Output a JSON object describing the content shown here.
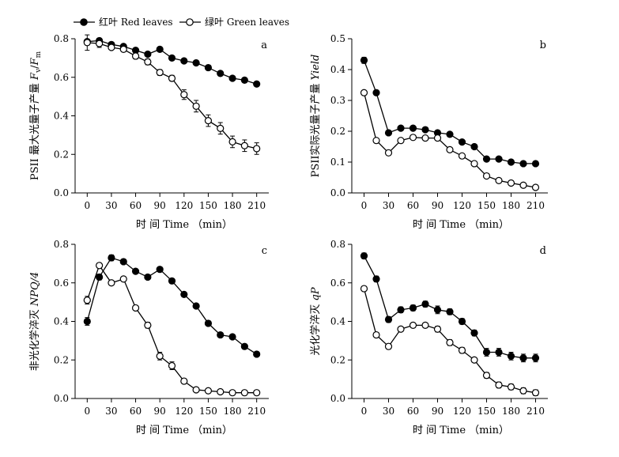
{
  "legend": [
    {
      "series": "red",
      "label": "红叶  Red leaves",
      "marker": "filled-circle",
      "color": "#000000"
    },
    {
      "series": "green",
      "label": "绿叶  Green leaves",
      "marker": "open-circle",
      "color": "#000000"
    }
  ],
  "x_axis_title": "时 间    Time  （min）",
  "chart_data": [
    {
      "panel": "a",
      "type": "line",
      "ylabel": "PSII 最大光量子产量 Fv/Fm",
      "ylabel_parts": [
        "PSII 最大光量子产量 ",
        "F",
        "v",
        "/",
        "F",
        "m"
      ],
      "x": [
        0,
        15,
        30,
        45,
        60,
        75,
        90,
        105,
        120,
        135,
        150,
        165,
        180,
        195,
        210
      ],
      "xticks": [
        0,
        30,
        60,
        90,
        120,
        150,
        180,
        210
      ],
      "xlim": [
        -15,
        225
      ],
      "ylim": [
        0,
        0.8
      ],
      "yticks": [
        "0.0",
        "0.2",
        "0.4",
        "0.6",
        "0.8"
      ],
      "series": [
        {
          "name": "Red leaves",
          "marker": "filled",
          "values": [
            0.785,
            0.79,
            0.77,
            0.76,
            0.74,
            0.72,
            0.745,
            0.7,
            0.685,
            0.675,
            0.65,
            0.62,
            0.595,
            0.585,
            0.565
          ],
          "errors": [
            0.01,
            0.008,
            0.008,
            0.008,
            0.008,
            0.008,
            0.01,
            0.008,
            0.008,
            0.008,
            0.008,
            0.008,
            0.008,
            0.008,
            0.008
          ]
        },
        {
          "name": "Green leaves",
          "marker": "open",
          "values": [
            0.78,
            0.775,
            0.755,
            0.745,
            0.71,
            0.68,
            0.625,
            0.595,
            0.51,
            0.45,
            0.375,
            0.335,
            0.265,
            0.245,
            0.23
          ],
          "errors": [
            0.04,
            0.02,
            0.01,
            0.01,
            0.015,
            0.015,
            0.015,
            0.015,
            0.025,
            0.03,
            0.03,
            0.03,
            0.03,
            0.03,
            0.03
          ]
        }
      ]
    },
    {
      "panel": "b",
      "type": "line",
      "ylabel": "PSII实际光量子产量 Yield",
      "ylabel_parts": [
        "PSII实际光量子产量 ",
        "Yield"
      ],
      "x": [
        0,
        15,
        30,
        45,
        60,
        75,
        90,
        105,
        120,
        135,
        150,
        165,
        180,
        195,
        210
      ],
      "xticks": [
        0,
        30,
        60,
        90,
        120,
        150,
        180,
        210
      ],
      "xlim": [
        -15,
        225
      ],
      "ylim": [
        0,
        0.5
      ],
      "yticks": [
        "0.0",
        "0.1",
        "0.2",
        "0.3",
        "0.4",
        "0.5"
      ],
      "series": [
        {
          "name": "Red leaves",
          "marker": "filled",
          "values": [
            0.43,
            0.325,
            0.195,
            0.21,
            0.21,
            0.205,
            0.195,
            0.19,
            0.165,
            0.15,
            0.11,
            0.11,
            0.1,
            0.095,
            0.095
          ],
          "errors": [
            0.01,
            0.008,
            0.005,
            0.006,
            0.005,
            0.005,
            0.005,
            0.005,
            0.005,
            0.005,
            0.005,
            0.004,
            0.004,
            0.004,
            0.004
          ]
        },
        {
          "name": "Green leaves",
          "marker": "open",
          "values": [
            0.325,
            0.17,
            0.13,
            0.17,
            0.18,
            0.178,
            0.178,
            0.14,
            0.12,
            0.095,
            0.055,
            0.04,
            0.032,
            0.025,
            0.018
          ],
          "errors": [
            0.005,
            0.004,
            0.004,
            0.004,
            0.004,
            0.004,
            0.004,
            0.004,
            0.004,
            0.004,
            0.004,
            0.003,
            0.003,
            0.003,
            0.003
          ]
        }
      ]
    },
    {
      "panel": "c",
      "type": "line",
      "ylabel": "非光化学淬灭 NPQ/4",
      "ylabel_parts": [
        "非光化学淬灭 ",
        "NPQ/4"
      ],
      "x": [
        0,
        15,
        30,
        45,
        60,
        75,
        90,
        105,
        120,
        135,
        150,
        165,
        180,
        195,
        210
      ],
      "xticks": [
        0,
        30,
        60,
        90,
        120,
        150,
        180,
        210
      ],
      "xlim": [
        -15,
        225
      ],
      "ylim": [
        0,
        0.8
      ],
      "yticks": [
        "0.0",
        "0.2",
        "0.4",
        "0.6",
        "0.8"
      ],
      "series": [
        {
          "name": "Red leaves",
          "marker": "filled",
          "values": [
            0.4,
            0.63,
            0.73,
            0.71,
            0.66,
            0.63,
            0.67,
            0.61,
            0.54,
            0.48,
            0.39,
            0.33,
            0.32,
            0.27,
            0.23
          ],
          "errors": [
            0.02,
            0.015,
            0.015,
            0.01,
            0.01,
            0.01,
            0.01,
            0.01,
            0.01,
            0.01,
            0.01,
            0.01,
            0.01,
            0.01,
            0.01
          ]
        },
        {
          "name": "Green leaves",
          "marker": "open",
          "values": [
            0.51,
            0.69,
            0.6,
            0.62,
            0.47,
            0.38,
            0.22,
            0.17,
            0.09,
            0.045,
            0.04,
            0.035,
            0.03,
            0.03,
            0.03
          ],
          "errors": [
            0.02,
            0.01,
            0.01,
            0.01,
            0.01,
            0.015,
            0.02,
            0.02,
            0.01,
            0.005,
            0.005,
            0.005,
            0.005,
            0.005,
            0.005
          ]
        }
      ]
    },
    {
      "panel": "d",
      "type": "line",
      "ylabel": "光化学淬灭 qP",
      "ylabel_parts": [
        "光化学淬灭 ",
        "qP"
      ],
      "x": [
        0,
        15,
        30,
        45,
        60,
        75,
        90,
        105,
        120,
        135,
        150,
        165,
        180,
        195,
        210
      ],
      "xticks": [
        0,
        30,
        60,
        90,
        120,
        150,
        180,
        210
      ],
      "xlim": [
        -15,
        225
      ],
      "ylim": [
        0,
        0.8
      ],
      "yticks": [
        "0.0",
        "0.2",
        "0.4",
        "0.6",
        "0.8"
      ],
      "series": [
        {
          "name": "Red leaves",
          "marker": "filled",
          "values": [
            0.74,
            0.62,
            0.41,
            0.46,
            0.47,
            0.49,
            0.46,
            0.45,
            0.4,
            0.34,
            0.24,
            0.24,
            0.22,
            0.21,
            0.21
          ],
          "errors": [
            0.015,
            0.015,
            0.015,
            0.015,
            0.015,
            0.015,
            0.02,
            0.015,
            0.015,
            0.015,
            0.02,
            0.02,
            0.02,
            0.02,
            0.02
          ]
        },
        {
          "name": "Green leaves",
          "marker": "open",
          "values": [
            0.57,
            0.33,
            0.27,
            0.36,
            0.38,
            0.38,
            0.36,
            0.29,
            0.25,
            0.2,
            0.12,
            0.07,
            0.06,
            0.04,
            0.03
          ],
          "errors": [
            0.01,
            0.01,
            0.01,
            0.01,
            0.01,
            0.01,
            0.015,
            0.015,
            0.015,
            0.01,
            0.015,
            0.015,
            0.015,
            0.015,
            0.015
          ]
        }
      ]
    }
  ]
}
